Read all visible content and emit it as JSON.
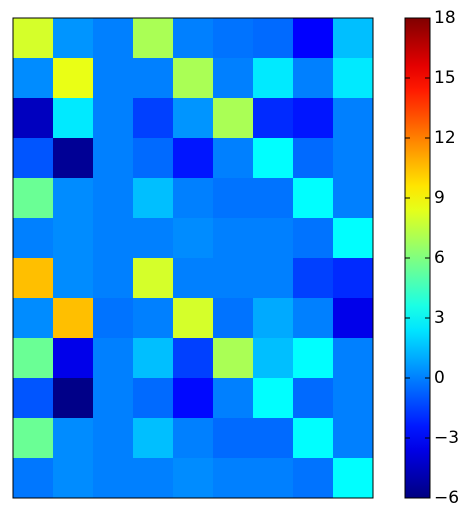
{
  "chart_data": {
    "type": "heatmap",
    "colormap": "jet",
    "z": [
      [
        8,
        0.5,
        0,
        7,
        0,
        -0.3,
        -0.5,
        -3,
        1.5
      ],
      [
        0.3,
        8.5,
        0,
        0,
        7,
        0,
        2.5,
        0,
        2.5
      ],
      [
        -4.5,
        2.5,
        0,
        -1.5,
        0.5,
        7,
        -2,
        -2.5,
        0
      ],
      [
        -1,
        -5.5,
        0,
        -0.5,
        -2.5,
        0,
        3,
        -0.5,
        0
      ],
      [
        5.5,
        0.3,
        0,
        1.5,
        0,
        -0.3,
        -0.3,
        3,
        0
      ],
      [
        0,
        0.3,
        0,
        0,
        0.3,
        0,
        0,
        -0.3,
        3
      ],
      [
        10.5,
        0.3,
        0,
        8,
        0,
        0,
        0,
        -1.5,
        -2
      ],
      [
        0.3,
        10.5,
        -0.3,
        0,
        8,
        -0.3,
        1,
        0,
        -3.5
      ],
      [
        5.5,
        -3.5,
        0,
        1.5,
        -1.5,
        7,
        1.5,
        3,
        0
      ],
      [
        -1,
        -5.8,
        0,
        -0.5,
        -2.8,
        0,
        3,
        -0.5,
        0
      ],
      [
        5.5,
        0.3,
        0,
        1.5,
        0,
        -0.5,
        -0.5,
        3,
        0
      ],
      [
        -0.2,
        0.3,
        0,
        0,
        0.3,
        0,
        0,
        -0.3,
        3
      ]
    ],
    "zlim": [
      -6,
      18
    ],
    "colorbar_ticks": [
      {
        "value": -6,
        "label": "−6"
      },
      {
        "value": -3,
        "label": "−3"
      },
      0,
      3,
      6,
      9,
      12,
      15,
      18
    ]
  }
}
